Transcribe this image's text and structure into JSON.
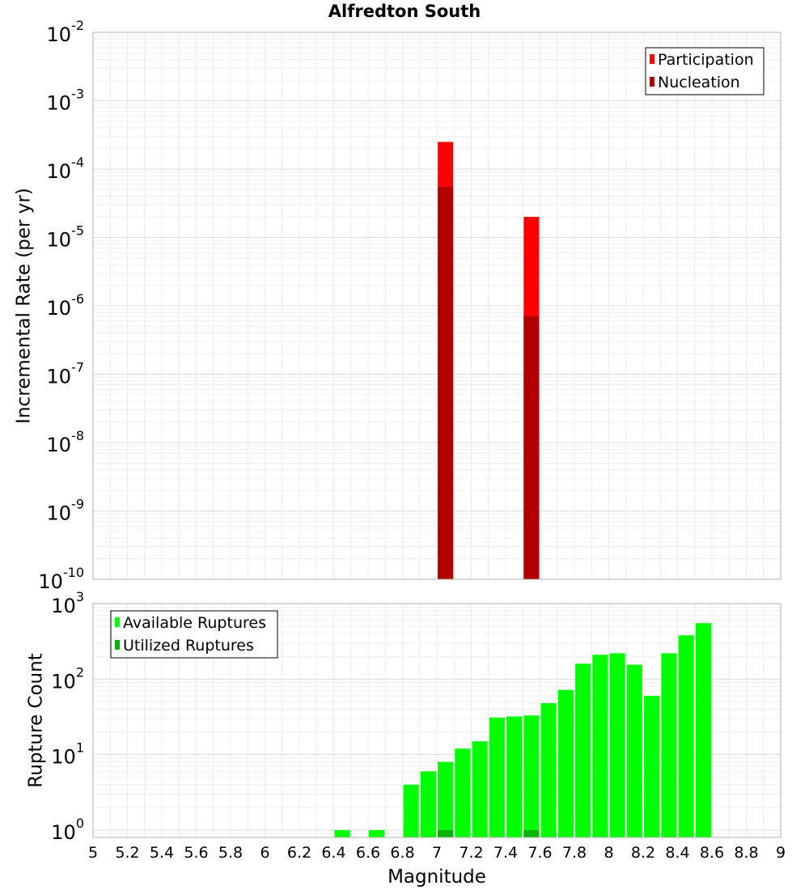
{
  "title": "Alfredton South",
  "chart_data": [
    {
      "type": "bar",
      "ylabel": "Incremental Rate (per yr)",
      "yscale": "log",
      "ylim": [
        1e-10,
        0.01
      ],
      "ytick_labels": [
        {
          "base": "10",
          "exp": "-10"
        },
        {
          "base": "10",
          "exp": "-9"
        },
        {
          "base": "10",
          "exp": "-8"
        },
        {
          "base": "10",
          "exp": "-7"
        },
        {
          "base": "10",
          "exp": "-6"
        },
        {
          "base": "10",
          "exp": "-5"
        },
        {
          "base": "10",
          "exp": "-4"
        },
        {
          "base": "10",
          "exp": "-3"
        },
        {
          "base": "10",
          "exp": "-2"
        }
      ],
      "xlim": [
        5,
        9
      ],
      "bar_width": 0.09,
      "series": [
        {
          "name": "Participation",
          "color": "#ff0000",
          "points": [
            {
              "x": 7.05,
              "y": 0.00025
            },
            {
              "x": 7.55,
              "y": 2e-05
            }
          ]
        },
        {
          "name": "Nucleation",
          "color": "#b30000",
          "points": [
            {
              "x": 7.05,
              "y": 5.5e-05
            },
            {
              "x": 7.55,
              "y": 7e-07
            }
          ]
        }
      ],
      "legend": {
        "position": "top-right",
        "items": [
          "Participation",
          "Nucleation"
        ]
      },
      "grid": true
    },
    {
      "type": "bar",
      "xlabel": "Magnitude",
      "ylabel": "Rupture Count",
      "yscale": "log",
      "ylim": [
        0.8,
        1000
      ],
      "ytick_labels": [
        {
          "value": 1,
          "base": "10",
          "exp": "0"
        },
        {
          "value": 10,
          "base": "10",
          "exp": "1"
        },
        {
          "value": 100,
          "base": "10",
          "exp": "2"
        },
        {
          "value": 1000,
          "base": "10",
          "exp": "3"
        }
      ],
      "xlim": [
        5,
        9
      ],
      "xticks": [
        "5",
        "5.2",
        "5.4",
        "5.6",
        "5.8",
        "6",
        "6.2",
        "6.4",
        "6.6",
        "6.8",
        "7",
        "7.2",
        "7.4",
        "7.6",
        "7.8",
        "8",
        "8.2",
        "8.4",
        "8.6",
        "8.8",
        "9"
      ],
      "bar_width": 0.09,
      "series": [
        {
          "name": "Available Ruptures",
          "color": "#00ff00",
          "points": [
            {
              "x": 6.45,
              "y": 1
            },
            {
              "x": 6.65,
              "y": 1
            },
            {
              "x": 6.85,
              "y": 4
            },
            {
              "x": 6.95,
              "y": 6
            },
            {
              "x": 7.05,
              "y": 8
            },
            {
              "x": 7.15,
              "y": 12
            },
            {
              "x": 7.25,
              "y": 15
            },
            {
              "x": 7.35,
              "y": 31
            },
            {
              "x": 7.45,
              "y": 32
            },
            {
              "x": 7.55,
              "y": 33
            },
            {
              "x": 7.65,
              "y": 48
            },
            {
              "x": 7.75,
              "y": 72
            },
            {
              "x": 7.85,
              "y": 160
            },
            {
              "x": 7.95,
              "y": 210
            },
            {
              "x": 8.05,
              "y": 220
            },
            {
              "x": 8.15,
              "y": 155
            },
            {
              "x": 8.25,
              "y": 60
            },
            {
              "x": 8.35,
              "y": 220
            },
            {
              "x": 8.45,
              "y": 380
            },
            {
              "x": 8.55,
              "y": 550
            }
          ]
        },
        {
          "name": "Utilized Ruptures",
          "color": "#00b300",
          "points": [
            {
              "x": 7.05,
              "y": 1
            },
            {
              "x": 7.55,
              "y": 1
            }
          ]
        }
      ],
      "legend": {
        "position": "top-left",
        "items": [
          "Available Ruptures",
          "Utilized Ruptures"
        ]
      },
      "grid": true
    }
  ]
}
